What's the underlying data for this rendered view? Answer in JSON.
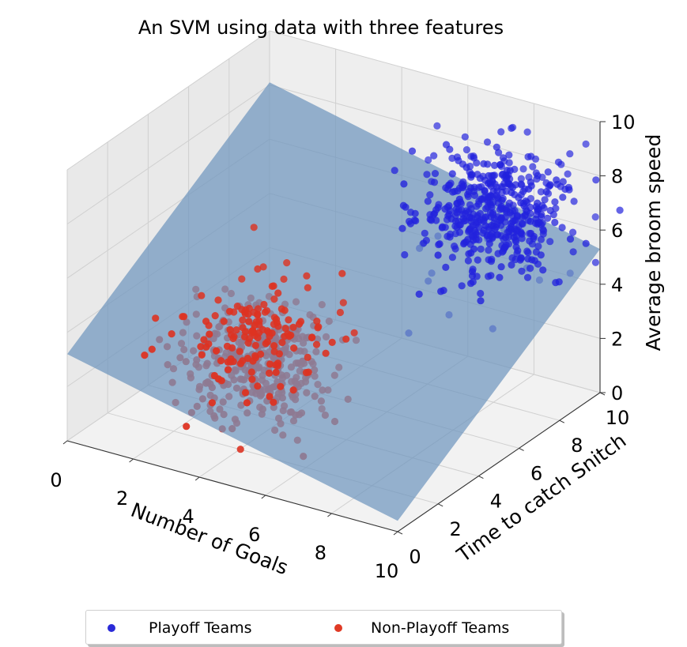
{
  "chart_data": {
    "type": "scatter3d",
    "title": "An SVM using data with three features",
    "xlabel": "Number of Goals",
    "ylabel": "Time to catch Snitch",
    "zlabel": "Average broom speed",
    "xlim": [
      0,
      10
    ],
    "ylim": [
      0,
      10
    ],
    "zlim": [
      0,
      10
    ],
    "x_ticks": [
      "0",
      "2",
      "4",
      "6",
      "8",
      "10"
    ],
    "y_ticks": [
      "0",
      "2",
      "4",
      "6",
      "8",
      "10"
    ],
    "z_ticks": [
      "0",
      "2",
      "4",
      "6",
      "8",
      "10"
    ],
    "grid": true,
    "legend_position": "bottom-center",
    "series": [
      {
        "name": "Playoff Teams",
        "color": "#2222dd",
        "center": [
          8,
          8,
          7
        ],
        "spread": 1.0,
        "count": 500
      },
      {
        "name": "Non-Playoff Teams",
        "color": "#dd3322",
        "center": [
          4,
          3,
          3
        ],
        "spread": 1.0,
        "count": 500
      }
    ],
    "decision_plane": {
      "label": "SVM decision boundary",
      "corner_z_values": {
        "x0_y0": 3.2,
        "x10_y0": 0.4,
        "x10_y10": 5.3,
        "x0_y10": 8.1
      },
      "color": "#6f95be"
    }
  }
}
